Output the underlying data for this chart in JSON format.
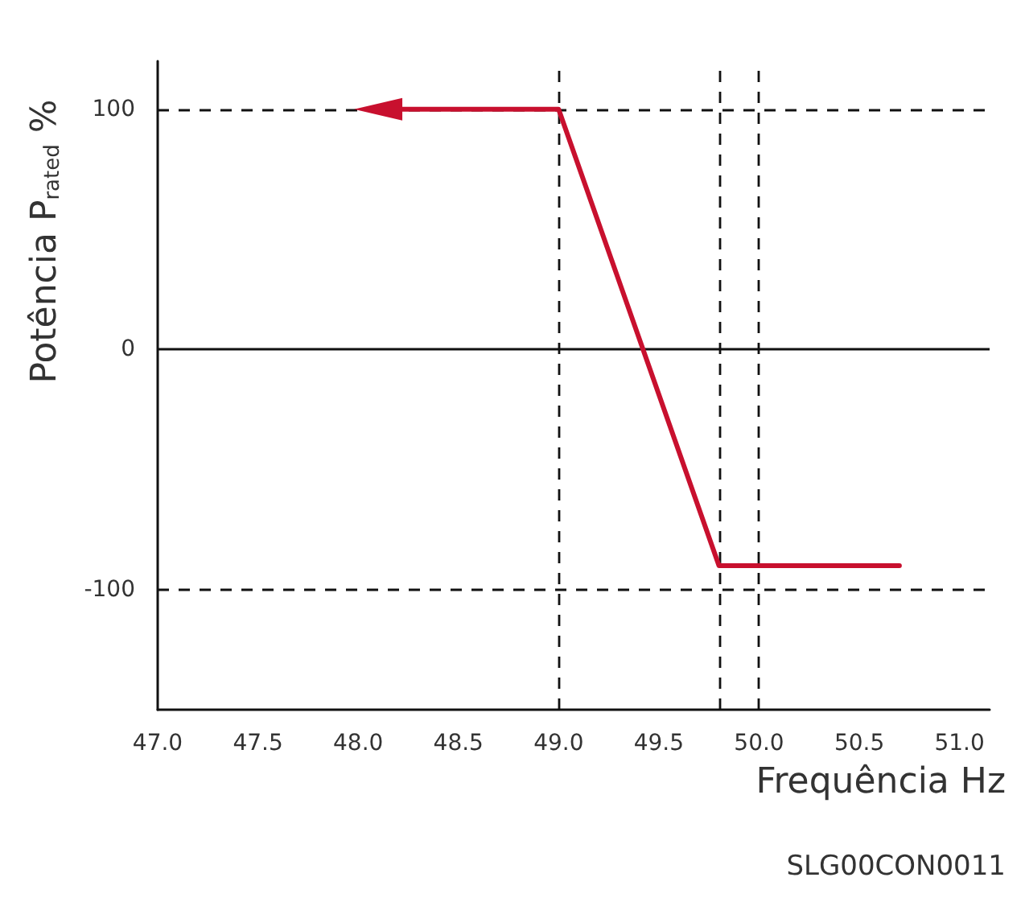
{
  "chart_data": {
    "type": "line",
    "xlabel": "Frequência Hz",
    "ylabel": "Potência P$_{rated}$ %",
    "annotations": [
      "SLG00CON0011"
    ],
    "series": [
      {
        "color": "#c8102e",
        "x": [
          48.1,
          49.0,
          49.8,
          50.7
        ],
        "values": [
          100,
          100,
          -90,
          -90
        ]
      }
    ],
    "xlim": [
      47,
      51.15
    ],
    "xticks": [
      {
        "value": 47,
        "label": "47.0"
      },
      {
        "value": 47.5,
        "label": "47.5"
      },
      {
        "value": 48,
        "label": "48.0"
      },
      {
        "value": 48.5,
        "label": "48.5"
      },
      {
        "value": 49,
        "label": "49.0"
      },
      {
        "value": 49.5,
        "label": "49.5"
      },
      {
        "value": 50,
        "label": "50.0"
      },
      {
        "value": 50.5,
        "label": "50.5"
      },
      {
        "value": 51,
        "label": "51.0"
      }
    ],
    "ylim": [
      -150,
      120
    ],
    "yticks": [
      -100,
      0,
      100
    ],
    "ref_lines": [
      {
        "axis": "y",
        "value": 100,
        "line_style": "dashed"
      },
      {
        "axis": "y",
        "value": 0,
        "line_style": "solid"
      },
      {
        "axis": "y",
        "value": -100,
        "line_style": "dashed"
      },
      {
        "axis": "x",
        "value": 49.0,
        "line_style": "dashed"
      },
      {
        "axis": "x",
        "value": 49.8,
        "line_style": "dashed"
      },
      {
        "axis": "x",
        "value": 50.0,
        "line_style": "dashed"
      }
    ],
    "grid": false,
    "marker": "none",
    "line_style": "solid"
  }
}
